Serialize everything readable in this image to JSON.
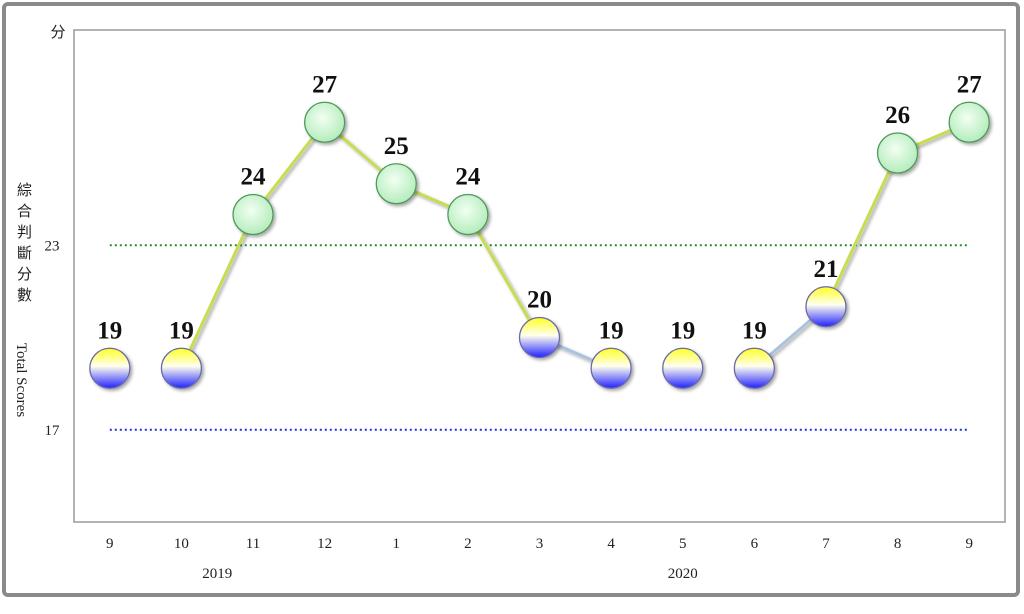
{
  "chart_data": {
    "type": "line",
    "y_unit": "分",
    "y_label_zh": "綜合判斷分數",
    "y_label_en": "Total Scores",
    "categories": [
      "9",
      "10",
      "11",
      "12",
      "1",
      "2",
      "3",
      "4",
      "5",
      "6",
      "7",
      "8",
      "9"
    ],
    "year_labels": [
      "2019",
      "2020"
    ],
    "values": [
      19,
      19,
      24,
      27,
      25,
      24,
      20,
      19,
      19,
      19,
      21,
      26,
      27
    ],
    "ylim": [
      14,
      30
    ],
    "yticks": [
      17,
      23
    ],
    "grid_colors": [
      "#1f2fe0",
      "#2a8a2a"
    ]
  }
}
